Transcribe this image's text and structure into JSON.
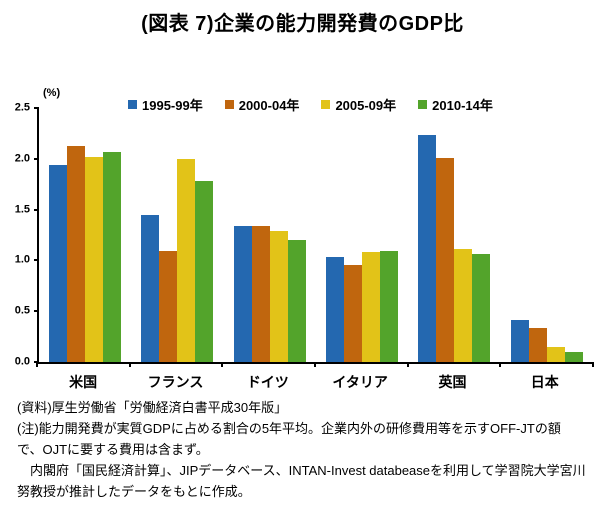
{
  "title": "(図表 7)企業の能力開発費のGDP比",
  "chart_data": {
    "type": "bar",
    "title": "(図表 7)企業の能力開発費のGDP比",
    "unit_label": "(%)",
    "xlabel": "",
    "ylabel": "(%)",
    "ylim": [
      0,
      2.5
    ],
    "yticks": [
      "0.0",
      "0.5",
      "1.0",
      "1.5",
      "2.0",
      "2.5"
    ],
    "grid": false,
    "legend_position": "top",
    "categories": [
      "米国",
      "フランス",
      "ドイツ",
      "イタリア",
      "英国",
      "日本"
    ],
    "series": [
      {
        "name": "1995-99年",
        "color": "#2468B0",
        "values": [
          1.94,
          1.45,
          1.34,
          1.03,
          2.23,
          0.41
        ]
      },
      {
        "name": "2000-04年",
        "color": "#C0660E",
        "values": [
          2.13,
          1.09,
          1.34,
          0.95,
          2.01,
          0.33
        ]
      },
      {
        "name": "2005-09年",
        "color": "#E2C318",
        "values": [
          2.02,
          2.0,
          1.29,
          1.08,
          1.11,
          0.15
        ]
      },
      {
        "name": "2010-14年",
        "color": "#53A42B",
        "values": [
          2.07,
          1.78,
          1.2,
          1.09,
          1.06,
          0.1
        ]
      }
    ]
  },
  "notes": {
    "lines": [
      "(資料)厚生労働省「労働経済白書平成30年版」",
      "(注)能力開発費が実質GDPに占める割合の5年平均。企業内外の研修費用等を示すOFF-JTの額",
      "で、OJTに要する費用は含まず。",
      "　内閣府「国民経済計算」、JIPデータベース、INTAN-Invest databeaseを利用して学習院大学宮川",
      "努教授が推計したデータをもとに作成。"
    ]
  }
}
